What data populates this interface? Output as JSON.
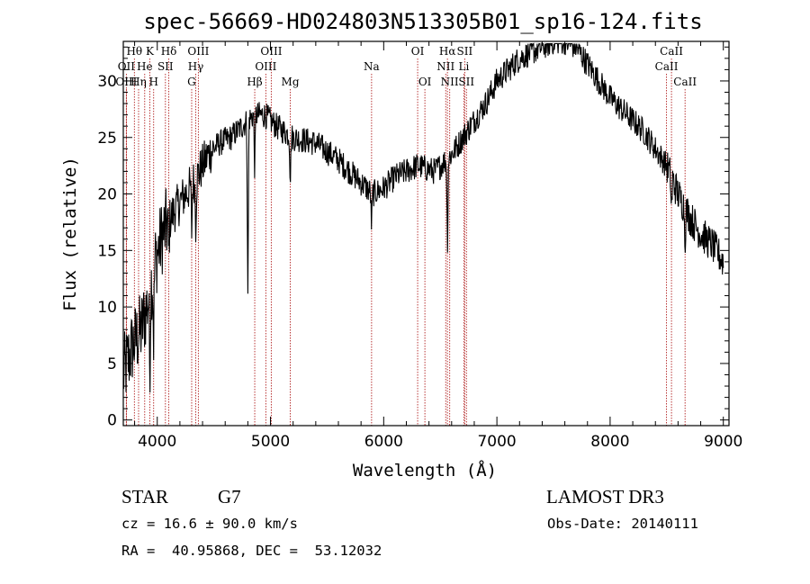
{
  "chart_data": {
    "type": "line",
    "title": "spec-56669-HD024803N513305B01_sp16-124.fits",
    "xlabel": "Wavelength (Å)",
    "ylabel": "Flux (relative)",
    "xlim": [
      3700,
      9050
    ],
    "ylim": [
      -0.5,
      33.5
    ],
    "xticks": [
      4000,
      5000,
      6000,
      7000,
      8000,
      9000
    ],
    "yticks": [
      0,
      5,
      10,
      15,
      20,
      25,
      30
    ],
    "grid": false,
    "legend": "none",
    "line_color": "#000000",
    "marker_color": "#b22222",
    "spectral_lines": [
      {
        "label": "Hθ",
        "x": 3798,
        "row": 1
      },
      {
        "label": "OII",
        "x": 3727,
        "row": 2
      },
      {
        "label": "OIII",
        "x": 3727,
        "row": 3
      },
      {
        "label": "Hη",
        "x": 3835,
        "row": 3
      },
      {
        "label": "He",
        "x": 3889,
        "row": 2
      },
      {
        "label": "K",
        "x": 3934,
        "row": 1
      },
      {
        "label": "H",
        "x": 3968,
        "row": 3
      },
      {
        "label": "SII",
        "x": 4072,
        "row": 2
      },
      {
        "label": "Hδ",
        "x": 4102,
        "row": 1
      },
      {
        "label": "OIII",
        "x": 4363,
        "row": 1
      },
      {
        "label": "Hγ",
        "x": 4340,
        "row": 2
      },
      {
        "label": "G",
        "x": 4304,
        "row": 3
      },
      {
        "label": "Hβ",
        "x": 4861,
        "row": 3
      },
      {
        "label": "OIII",
        "x": 5007,
        "row": 1
      },
      {
        "label": "OIII",
        "x": 4959,
        "row": 2
      },
      {
        "label": "Mg",
        "x": 5175,
        "row": 3
      },
      {
        "label": "Na",
        "x": 5893,
        "row": 2
      },
      {
        "label": "OI",
        "x": 6300,
        "row": 1
      },
      {
        "label": "OI",
        "x": 6364,
        "row": 3
      },
      {
        "label": "Hα",
        "x": 6563,
        "row": 1
      },
      {
        "label": "NII",
        "x": 6548,
        "row": 2
      },
      {
        "label": "NII",
        "x": 6583,
        "row": 3
      },
      {
        "label": "SII",
        "x": 6716,
        "row": 1
      },
      {
        "label": "Li",
        "x": 6708,
        "row": 2
      },
      {
        "label": "SII",
        "x": 6731,
        "row": 3
      },
      {
        "label": "CaII",
        "x": 8542,
        "row": 1
      },
      {
        "label": "CaII",
        "x": 8498,
        "row": 2
      },
      {
        "label": "CaII",
        "x": 8662,
        "row": 3
      }
    ],
    "continuum": [
      [
        3700,
        4
      ],
      [
        3780,
        6.5
      ],
      [
        3860,
        8
      ],
      [
        3930,
        11
      ],
      [
        3980,
        14
      ],
      [
        4050,
        16.5
      ],
      [
        4150,
        18.5
      ],
      [
        4250,
        20
      ],
      [
        4350,
        21.5
      ],
      [
        4450,
        23.5
      ],
      [
        4550,
        24.5
      ],
      [
        4650,
        25
      ],
      [
        4750,
        26
      ],
      [
        4850,
        27
      ],
      [
        4950,
        27
      ],
      [
        5050,
        26
      ],
      [
        5200,
        25
      ],
      [
        5400,
        24.5
      ],
      [
        5600,
        23
      ],
      [
        5800,
        21
      ],
      [
        5900,
        20
      ],
      [
        6000,
        20.5
      ],
      [
        6100,
        21.5
      ],
      [
        6200,
        22
      ],
      [
        6300,
        22.5
      ],
      [
        6450,
        22
      ],
      [
        6600,
        23.5
      ],
      [
        6700,
        25
      ],
      [
        6800,
        26.5
      ],
      [
        6900,
        28
      ],
      [
        7000,
        30
      ],
      [
        7100,
        31
      ],
      [
        7200,
        32
      ],
      [
        7300,
        32.5
      ],
      [
        7400,
        33
      ],
      [
        7500,
        33.5
      ],
      [
        7600,
        33.5
      ],
      [
        7700,
        33
      ],
      [
        7800,
        31.5
      ],
      [
        7900,
        30
      ],
      [
        8000,
        28.5
      ],
      [
        8100,
        27.5
      ],
      [
        8200,
        26.5
      ],
      [
        8300,
        25.5
      ],
      [
        8400,
        24
      ],
      [
        8500,
        22.5
      ],
      [
        8600,
        20
      ],
      [
        8700,
        18
      ],
      [
        8800,
        16.5
      ],
      [
        8900,
        15.5
      ],
      [
        9000,
        14
      ]
    ],
    "absorption": [
      {
        "x": 3934,
        "depth": 7
      },
      {
        "x": 3968,
        "depth": 6
      },
      {
        "x": 4102,
        "depth": 3
      },
      {
        "x": 4304,
        "depth": 4
      },
      {
        "x": 4340,
        "depth": 4
      },
      {
        "x": 4800,
        "depth": 16
      },
      {
        "x": 4861,
        "depth": 5
      },
      {
        "x": 5175,
        "depth": 4
      },
      {
        "x": 5893,
        "depth": 3
      },
      {
        "x": 6563,
        "depth": 8
      },
      {
        "x": 8542,
        "depth": 3
      },
      {
        "x": 8662,
        "depth": 3
      }
    ]
  },
  "info": {
    "class_label": "STAR",
    "subclass": "G7",
    "survey": "LAMOST DR3",
    "cz_line": "cz = 16.6 ± 90.0 km/s",
    "obs_date_line": "Obs-Date: 20140111",
    "radec_line": "RA =  40.95868, DEC =  53.12032"
  }
}
